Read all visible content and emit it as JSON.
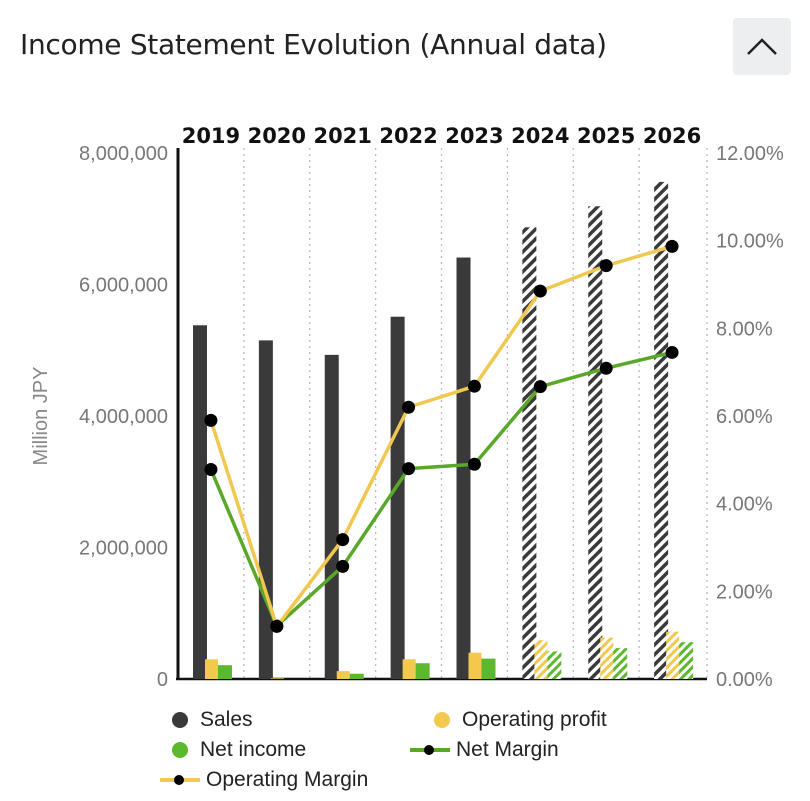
{
  "header": {
    "title": "Income Statement Evolution (Annual data)",
    "collapse_icon": "chevron-up-icon"
  },
  "colors": {
    "sales": "#3a3a3a",
    "operating_profit": "#f2c94c",
    "net_income": "#5cb82c",
    "net_margin": "#5aa82a",
    "operating_margin": "#f0c850",
    "markers": "#000000",
    "grid": "#bbbbbb"
  },
  "chart_data": {
    "type": "bar",
    "categories": [
      "2019",
      "2020",
      "2021",
      "2022",
      "2023",
      "2024",
      "2025",
      "2026"
    ],
    "estimated_from_index": 5,
    "ylabel": "Million JPY",
    "ylim": [
      0,
      8000000
    ],
    "yticks": [
      "0",
      "2,000,000",
      "4,000,000",
      "6,000,000",
      "8,000,000"
    ],
    "y2lim": [
      0,
      12
    ],
    "y2ticks": [
      "0.00%",
      "2.00%",
      "4.00%",
      "6.00%",
      "8.00%",
      "10.00%",
      "12.00%"
    ],
    "grid": "vertical dotted",
    "legend_position": "bottom",
    "series": [
      {
        "name": "Sales",
        "type": "bar",
        "axis": "left",
        "values": [
          5380000,
          5150000,
          4930000,
          5510000,
          6410000,
          6870000,
          7190000,
          7560000
        ]
      },
      {
        "name": "Operating profit",
        "type": "bar",
        "axis": "left",
        "values": [
          300000,
          10000,
          120000,
          300000,
          400000,
          590000,
          630000,
          720000
        ]
      },
      {
        "name": "Net income",
        "type": "bar",
        "axis": "left",
        "values": [
          210000,
          0,
          80000,
          240000,
          310000,
          420000,
          470000,
          560000
        ]
      },
      {
        "name": "Net Margin",
        "type": "line",
        "axis": "right",
        "values": [
          4.78,
          1.21,
          2.57,
          4.8,
          4.9,
          6.67,
          7.09,
          7.45
        ]
      },
      {
        "name": "Operating Margin",
        "type": "line",
        "axis": "right",
        "values": [
          5.9,
          1.2,
          3.18,
          6.2,
          6.68,
          8.85,
          9.43,
          9.87
        ]
      }
    ]
  },
  "legend": {
    "sales": "Sales",
    "operating_profit": "Operating profit",
    "net_income": "Net income",
    "net_margin": "Net Margin",
    "operating_margin": "Operating Margin"
  }
}
